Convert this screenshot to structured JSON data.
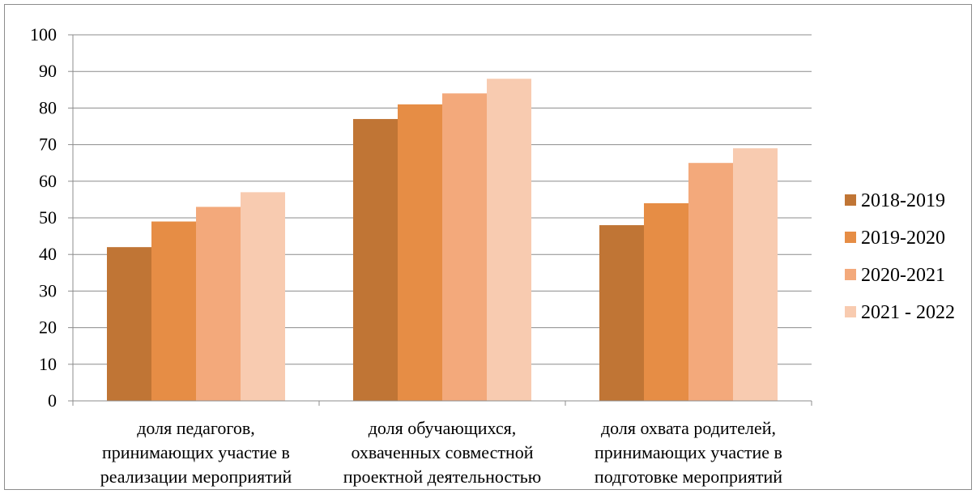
{
  "chart_data": {
    "type": "bar",
    "categories": [
      [
        "доля педагогов,",
        "принимающих участие в",
        "реализации  мероприятий"
      ],
      [
        "доля обучающихся,",
        "охваченных совместной",
        "проектной деятельностью"
      ],
      [
        "доля охвата родителей,",
        "принимающих   участие в",
        "подготовке мероприятий"
      ]
    ],
    "series": [
      {
        "name": "2018-2019",
        "color": "#c07535",
        "values": [
          42,
          77,
          48
        ]
      },
      {
        "name": "2019-2020",
        "color": "#e68d45",
        "values": [
          49,
          81,
          54
        ]
      },
      {
        "name": "2020-2021",
        "color": "#f3a97b",
        "values": [
          53,
          84,
          65
        ]
      },
      {
        "name": "2021 - 2022",
        "color": "#f8cbb0",
        "values": [
          57,
          88,
          69
        ]
      }
    ],
    "ylim": [
      0,
      100
    ],
    "yticks": [
      0,
      10,
      20,
      30,
      40,
      50,
      60,
      70,
      80,
      90,
      100
    ],
    "grid": true,
    "legend": "right"
  }
}
